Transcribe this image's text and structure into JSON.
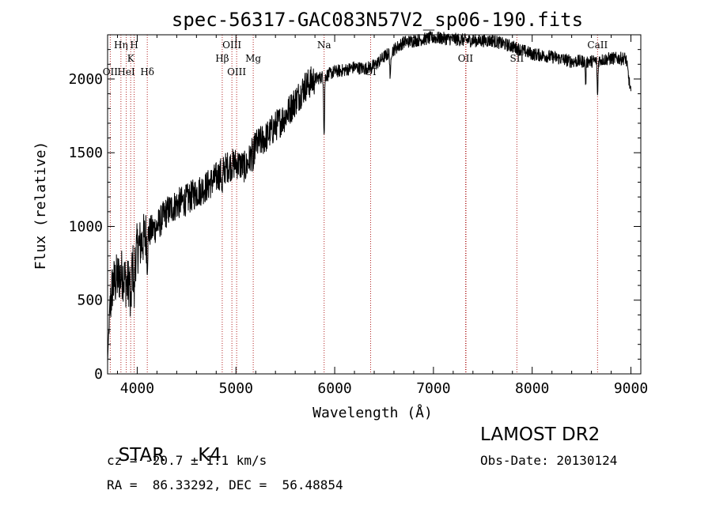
{
  "chart_data": {
    "type": "line",
    "title": "spec-56317-GAC083N57V2_sp06-190.fits",
    "xlabel": "Wavelength (Å)",
    "ylabel": "Flux (relative)",
    "xlim": [
      3700,
      9100
    ],
    "ylim": [
      0,
      2300
    ],
    "xticks": [
      4000,
      5000,
      6000,
      7000,
      8000,
      9000
    ],
    "yticks": [
      0,
      500,
      1000,
      1500,
      2000
    ],
    "grid": false,
    "line_color": "#000000",
    "marker_line_color": "#b22222",
    "lines": [
      {
        "label": "OII",
        "x": 3727,
        "row": 3
      },
      {
        "label": "Hη",
        "x": 3835,
        "row": 1
      },
      {
        "label": "HeI",
        "x": 3889,
        "row": 3
      },
      {
        "label": "K",
        "x": 3934,
        "row": 2
      },
      {
        "label": "H",
        "x": 3969,
        "row": 1
      },
      {
        "label": "Hδ",
        "x": 4102,
        "row": 3
      },
      {
        "label": "Hβ",
        "x": 4861,
        "row": 2
      },
      {
        "label": "OIII",
        "x": 4959,
        "row": 1
      },
      {
        "label": "OIII",
        "x": 5007,
        "row": 3
      },
      {
        "label": "Mg",
        "x": 5175,
        "row": 2
      },
      {
        "label": "Na",
        "x": 5893,
        "row": 1
      },
      {
        "label": "OI",
        "x": 6364,
        "row": 3
      },
      {
        "label": "OII",
        "x": 7325,
        "row": 2
      },
      {
        "label": "OII",
        "x": 7330,
        "row": 2
      },
      {
        "label": "SII",
        "x": 7845,
        "row": 2
      },
      {
        "label": "CaII",
        "x": 8662,
        "row": 1
      }
    ],
    "continuum": {
      "x": [
        3700,
        3750,
        3800,
        3850,
        3900,
        3950,
        4000,
        4100,
        4200,
        4300,
        4400,
        4500,
        4600,
        4700,
        4800,
        4900,
        5000,
        5100,
        5200,
        5300,
        5400,
        5500,
        5600,
        5700,
        5800,
        5900,
        6000,
        6100,
        6200,
        6300,
        6400,
        6500,
        6600,
        6700,
        6800,
        6900,
        7000,
        7200,
        7400,
        7600,
        7800,
        8000,
        8200,
        8400,
        8600,
        8800,
        8950,
        9000
      ],
      "y": [
        300,
        600,
        650,
        680,
        600,
        700,
        850,
        950,
        1000,
        1100,
        1150,
        1180,
        1230,
        1270,
        1330,
        1400,
        1430,
        1400,
        1550,
        1600,
        1680,
        1750,
        1850,
        1950,
        2000,
        2020,
        2050,
        2060,
        2080,
        2070,
        2090,
        2150,
        2200,
        2250,
        2260,
        2270,
        2280,
        2270,
        2260,
        2260,
        2220,
        2170,
        2150,
        2120,
        2120,
        2140,
        2140,
        1900
      ]
    },
    "absorption_dips": [
      {
        "x": 3934,
        "depth": 300
      },
      {
        "x": 3969,
        "depth": 250
      },
      {
        "x": 4102,
        "depth": 200
      },
      {
        "x": 4861,
        "depth": 150
      },
      {
        "x": 5175,
        "depth": 120
      },
      {
        "x": 5893,
        "depth": 400
      },
      {
        "x": 6563,
        "depth": 200
      },
      {
        "x": 8542,
        "depth": 150
      },
      {
        "x": 8662,
        "depth": 250
      }
    ]
  },
  "info": {
    "object_class": "STAR",
    "subclass": "K4",
    "survey": "LAMOST DR2",
    "redshift": "cz = -20.7 ± 1.1 km/s",
    "obs_date": "Obs-Date: 20130124",
    "coords": "RA =  86.33292, DEC =  56.48854"
  }
}
